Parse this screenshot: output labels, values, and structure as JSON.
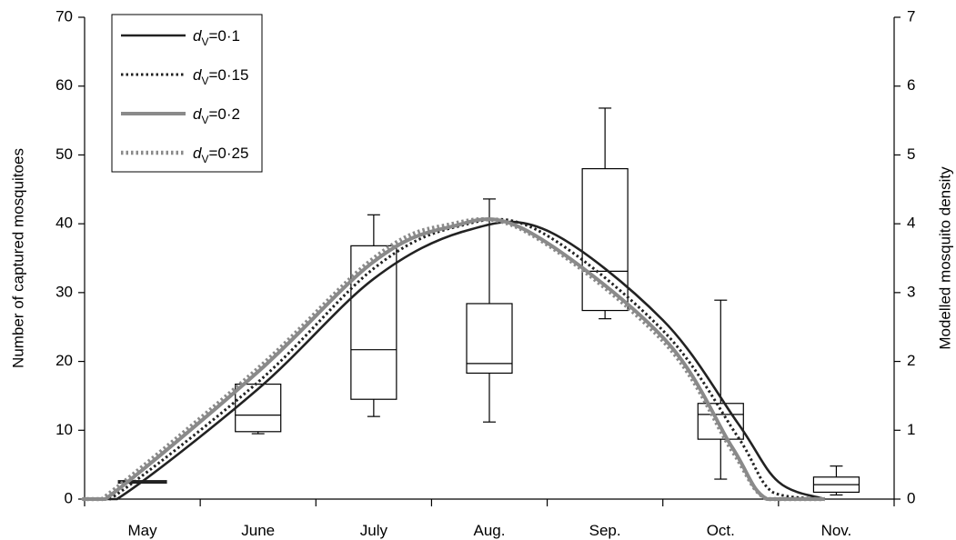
{
  "chart_data": {
    "type": "line",
    "categories": [
      "May",
      "June",
      "July",
      "Aug.",
      "Sep.",
      "Oct.",
      "Nov."
    ],
    "ylabel": "Number of captured mosquitoes",
    "ylabel_right": "Modelled mosquito density",
    "ylim": [
      0,
      70
    ],
    "yticks": [
      "0",
      "10",
      "20",
      "30",
      "40",
      "50",
      "60",
      "70"
    ],
    "ylim_right": [
      0,
      7
    ],
    "yticks_right": [
      "0",
      "1",
      "2",
      "3",
      "4",
      "5",
      "6",
      "7"
    ],
    "legend_position": "top-left",
    "boxes": [
      {
        "category": "May",
        "min": 2.5,
        "q1": 2.5,
        "median": 2.5,
        "q3": 2.5,
        "max": 2.5
      },
      {
        "category": "June",
        "min": 9.5,
        "q1": 9.8,
        "median": 12.2,
        "q3": 16.7,
        "max": 16.7
      },
      {
        "category": "July",
        "min": 12.0,
        "q1": 14.5,
        "median": 21.7,
        "q3": 36.8,
        "max": 41.3
      },
      {
        "category": "Aug.",
        "min": 11.2,
        "q1": 18.3,
        "median": 19.7,
        "q3": 28.4,
        "max": 43.6
      },
      {
        "category": "Sep.",
        "min": 26.2,
        "q1": 27.4,
        "median": 33.1,
        "q3": 48.0,
        "max": 56.8
      },
      {
        "category": "Oct.",
        "min": 2.9,
        "q1": 8.7,
        "median": 12.3,
        "q3": 13.9,
        "max": 28.9
      },
      {
        "category": "Nov.",
        "min": 0.6,
        "q1": 1.0,
        "median": 2.1,
        "q3": 3.2,
        "max": 4.8
      }
    ],
    "series": [
      {
        "name": "d_v=0·1",
        "label_sub": "V",
        "label_value": "=0·1",
        "style": "solid",
        "color": "#222222",
        "x": [
          0,
          0.28,
          1.5,
          2.5,
          3.3,
          4.0,
          5.0,
          5.65,
          6.0,
          6.4
        ],
        "y": [
          0,
          0,
          1.6,
          3.2,
          3.9,
          3.9,
          2.6,
          1.1,
          0.25,
          0
        ]
      },
      {
        "name": "d_v=0·15",
        "label_sub": "V",
        "label_value": "=0·15",
        "style": "dotted",
        "color": "#222222",
        "x": [
          0,
          0.22,
          1.5,
          2.5,
          3.2,
          3.9,
          5.0,
          5.65,
          5.95,
          6.4
        ],
        "y": [
          0,
          0,
          1.7,
          3.35,
          3.95,
          3.92,
          2.45,
          0.9,
          0.1,
          0
        ]
      },
      {
        "name": "d_v=0·2",
        "label_sub": "V",
        "label_value": "=0·2",
        "style": "solid",
        "color": "#8a8a8a",
        "x": [
          0,
          0.18,
          1.5,
          2.5,
          3.15,
          3.8,
          5.0,
          5.6,
          5.9,
          6.4
        ],
        "y": [
          0,
          0,
          1.85,
          3.45,
          3.95,
          3.92,
          2.35,
          0.75,
          0,
          0
        ]
      },
      {
        "name": "d_v=0·25",
        "label_sub": "V",
        "label_value": "=0·25",
        "style": "dotted",
        "color": "#8a8a8a",
        "x": [
          0,
          0.15,
          1.5,
          2.5,
          3.1,
          3.8,
          5.0,
          5.6,
          5.9,
          6.4
        ],
        "y": [
          0,
          0,
          1.9,
          3.5,
          3.97,
          3.9,
          2.3,
          0.7,
          0,
          0
        ]
      }
    ]
  }
}
